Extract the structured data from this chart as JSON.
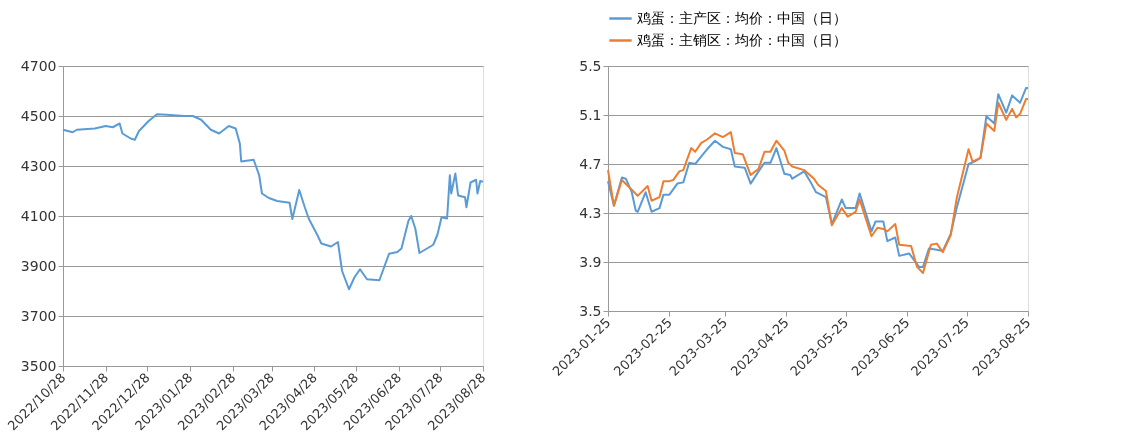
{
  "chart_data": [
    {
      "type": "line",
      "grid": "y",
      "legend": false,
      "xlim": [
        "2022-10-28",
        "2023-08-28"
      ],
      "ylim": [
        3500,
        4700
      ],
      "yticks": [
        3500,
        3700,
        3900,
        4100,
        4300,
        4500,
        4700
      ],
      "xticks": [
        {
          "value": "2022-10-28",
          "label": "2022/10/28"
        },
        {
          "value": "2022-11-28",
          "label": "2022/11/28"
        },
        {
          "value": "2022-12-28",
          "label": "2022/12/28"
        },
        {
          "value": "2023-01-28",
          "label": "2023/01/28"
        },
        {
          "value": "2023-02-28",
          "label": "2023/02/28"
        },
        {
          "value": "2023-03-28",
          "label": "2023/03/28"
        },
        {
          "value": "2023-04-28",
          "label": "2023/04/28"
        },
        {
          "value": "2023-05-28",
          "label": "2023/05/28"
        },
        {
          "value": "2023-06-28",
          "label": "2023/06/28"
        },
        {
          "value": "2023-07-28",
          "label": "2023/07/28"
        },
        {
          "value": "2023-08-28",
          "label": "2023/08/28"
        }
      ],
      "series": [
        {
          "color": "#5b9bd5",
          "x": [
            "2022-10-28",
            "2022-11-04",
            "2022-11-07",
            "2022-11-20",
            "2022-11-28",
            "2022-12-03",
            "2022-12-08",
            "2022-12-10",
            "2022-12-16",
            "2022-12-19",
            "2022-12-22",
            "2022-12-29",
            "2023-01-04",
            "2023-01-11",
            "2023-01-24",
            "2023-01-30",
            "2023-02-05",
            "2023-02-12",
            "2023-02-18",
            "2023-02-25",
            "2023-03-02",
            "2023-03-05",
            "2023-03-06",
            "2023-03-15",
            "2023-03-19",
            "2023-03-21",
            "2023-03-26",
            "2023-04-01",
            "2023-04-10",
            "2023-04-12",
            "2023-04-17",
            "2023-04-21",
            "2023-04-24",
            "2023-04-30",
            "2023-05-03",
            "2023-05-10",
            "2023-05-15",
            "2023-05-18",
            "2023-05-23",
            "2023-05-27",
            "2023-05-31",
            "2023-06-05",
            "2023-06-14",
            "2023-06-21",
            "2023-06-27",
            "2023-06-30",
            "2023-07-05",
            "2023-07-07",
            "2023-07-10",
            "2023-07-13",
            "2023-07-20",
            "2023-07-23",
            "2023-07-26",
            "2023-07-29",
            "2023-08-02",
            "2023-08-04",
            "2023-08-05",
            "2023-08-08",
            "2023-08-10",
            "2023-08-15",
            "2023-08-16",
            "2023-08-19",
            "2023-08-23",
            "2023-08-24",
            "2023-08-26",
            "2023-08-28"
          ],
          "values": [
            4445,
            4435,
            4445,
            4450,
            4460,
            4455,
            4470,
            4430,
            4410,
            4405,
            4440,
            4480,
            4507,
            4505,
            4500,
            4500,
            4485,
            4445,
            4430,
            4460,
            4450,
            4390,
            4318,
            4325,
            4263,
            4190,
            4172,
            4160,
            4153,
            4088,
            4204,
            4135,
            4088,
            4025,
            3990,
            3978,
            3996,
            3880,
            3807,
            3855,
            3887,
            3847,
            3843,
            3949,
            3956,
            3970,
            4080,
            4100,
            4050,
            3952,
            3975,
            3985,
            4025,
            4095,
            4090,
            4263,
            4190,
            4270,
            4182,
            4175,
            4135,
            4234,
            4245,
            4190,
            4240,
            4237
          ]
        }
      ]
    },
    {
      "type": "line",
      "grid": "y",
      "legend": "top",
      "xlim": [
        "2023-01-25",
        "2023-08-25"
      ],
      "ylim": [
        3.5,
        5.5
      ],
      "yticks": [
        3.5,
        3.9,
        4.3,
        4.7,
        5.1,
        5.5
      ],
      "xticks": [
        "2023-01-25",
        "2023-02-25",
        "2023-03-25",
        "2023-04-25",
        "2023-05-25",
        "2023-06-25",
        "2023-07-25",
        "2023-08-25"
      ],
      "series": [
        {
          "name": "鸡蛋：主产区：均价：中国（日）",
          "color": "#5b9bd5",
          "x": [
            "2023-01-25",
            "2023-01-28",
            "2023-02-01",
            "2023-02-03",
            "2023-02-06",
            "2023-02-08",
            "2023-02-09",
            "2023-02-13",
            "2023-02-16",
            "2023-02-20",
            "2023-02-22",
            "2023-02-25",
            "2023-03-01",
            "2023-03-04",
            "2023-03-07",
            "2023-03-10",
            "2023-03-13",
            "2023-03-16",
            "2023-03-20",
            "2023-03-24",
            "2023-03-28",
            "2023-03-30",
            "2023-04-04",
            "2023-04-07",
            "2023-04-11",
            "2023-04-14",
            "2023-04-17",
            "2023-04-20",
            "2023-04-24",
            "2023-04-27",
            "2023-04-28",
            "2023-05-04",
            "2023-05-07",
            "2023-05-10",
            "2023-05-15",
            "2023-05-18",
            "2023-05-23",
            "2023-05-25",
            "2023-05-30",
            "2023-06-01",
            "2023-06-07",
            "2023-06-09",
            "2023-06-13",
            "2023-06-15",
            "2023-06-19",
            "2023-06-21",
            "2023-06-26",
            "2023-07-01",
            "2023-07-03",
            "2023-07-06",
            "2023-07-10",
            "2023-07-13",
            "2023-07-17",
            "2023-07-20",
            "2023-07-26",
            "2023-07-29",
            "2023-08-01",
            "2023-08-04",
            "2023-08-08",
            "2023-08-10",
            "2023-08-14",
            "2023-08-17",
            "2023-08-21",
            "2023-08-24",
            "2023-08-25"
          ],
          "values": [
            4.56,
            4.36,
            4.59,
            4.58,
            4.47,
            4.32,
            4.31,
            4.47,
            4.31,
            4.34,
            4.45,
            4.45,
            4.54,
            4.55,
            4.71,
            4.7,
            4.76,
            4.82,
            4.89,
            4.84,
            4.82,
            4.68,
            4.67,
            4.54,
            4.64,
            4.71,
            4.71,
            4.83,
            4.62,
            4.61,
            4.58,
            4.64,
            4.56,
            4.47,
            4.43,
            4.21,
            4.41,
            4.34,
            4.34,
            4.46,
            4.15,
            4.23,
            4.23,
            4.07,
            4.1,
            3.95,
            3.97,
            3.86,
            3.86,
            4.01,
            4.0,
            3.99,
            4.13,
            4.34,
            4.7,
            4.72,
            4.75,
            5.09,
            5.03,
            5.27,
            5.12,
            5.26,
            5.2,
            5.32,
            5.32
          ]
        },
        {
          "name": "鸡蛋：主销区：均价：中国（日）",
          "color": "#ed7d31",
          "x": [
            "2023-01-25",
            "2023-01-28",
            "2023-02-01",
            "2023-02-06",
            "2023-02-09",
            "2023-02-14",
            "2023-02-16",
            "2023-02-20",
            "2023-02-22",
            "2023-02-25",
            "2023-02-27",
            "2023-03-02",
            "2023-03-04",
            "2023-03-08",
            "2023-03-10",
            "2023-03-13",
            "2023-03-16",
            "2023-03-20",
            "2023-03-24",
            "2023-03-28",
            "2023-03-30",
            "2023-04-03",
            "2023-04-07",
            "2023-04-11",
            "2023-04-14",
            "2023-04-17",
            "2023-04-20",
            "2023-04-24",
            "2023-04-26",
            "2023-04-28",
            "2023-05-04",
            "2023-05-09",
            "2023-05-11",
            "2023-05-15",
            "2023-05-18",
            "2023-05-23",
            "2023-05-26",
            "2023-05-30",
            "2023-06-01",
            "2023-06-07",
            "2023-06-10",
            "2023-06-13",
            "2023-06-15",
            "2023-06-19",
            "2023-06-21",
            "2023-06-27",
            "2023-06-30",
            "2023-07-03",
            "2023-07-07",
            "2023-07-10",
            "2023-07-13",
            "2023-07-17",
            "2023-07-20",
            "2023-07-26",
            "2023-07-28",
            "2023-08-01",
            "2023-08-04",
            "2023-08-08",
            "2023-08-10",
            "2023-08-14",
            "2023-08-17",
            "2023-08-19",
            "2023-08-21",
            "2023-08-24",
            "2023-08-25"
          ],
          "values": [
            4.65,
            4.36,
            4.57,
            4.49,
            4.44,
            4.52,
            4.4,
            4.43,
            4.56,
            4.56,
            4.57,
            4.64,
            4.65,
            4.83,
            4.8,
            4.87,
            4.9,
            4.95,
            4.92,
            4.96,
            4.79,
            4.78,
            4.61,
            4.66,
            4.8,
            4.8,
            4.89,
            4.81,
            4.71,
            4.68,
            4.65,
            4.58,
            4.53,
            4.48,
            4.2,
            4.34,
            4.27,
            4.31,
            4.41,
            4.11,
            4.18,
            4.17,
            4.15,
            4.21,
            4.04,
            4.03,
            3.86,
            3.81,
            4.04,
            4.05,
            3.98,
            4.12,
            4.42,
            4.82,
            4.72,
            4.75,
            5.03,
            4.97,
            5.2,
            5.06,
            5.15,
            5.08,
            5.11,
            5.23,
            5.23
          ]
        }
      ]
    }
  ]
}
